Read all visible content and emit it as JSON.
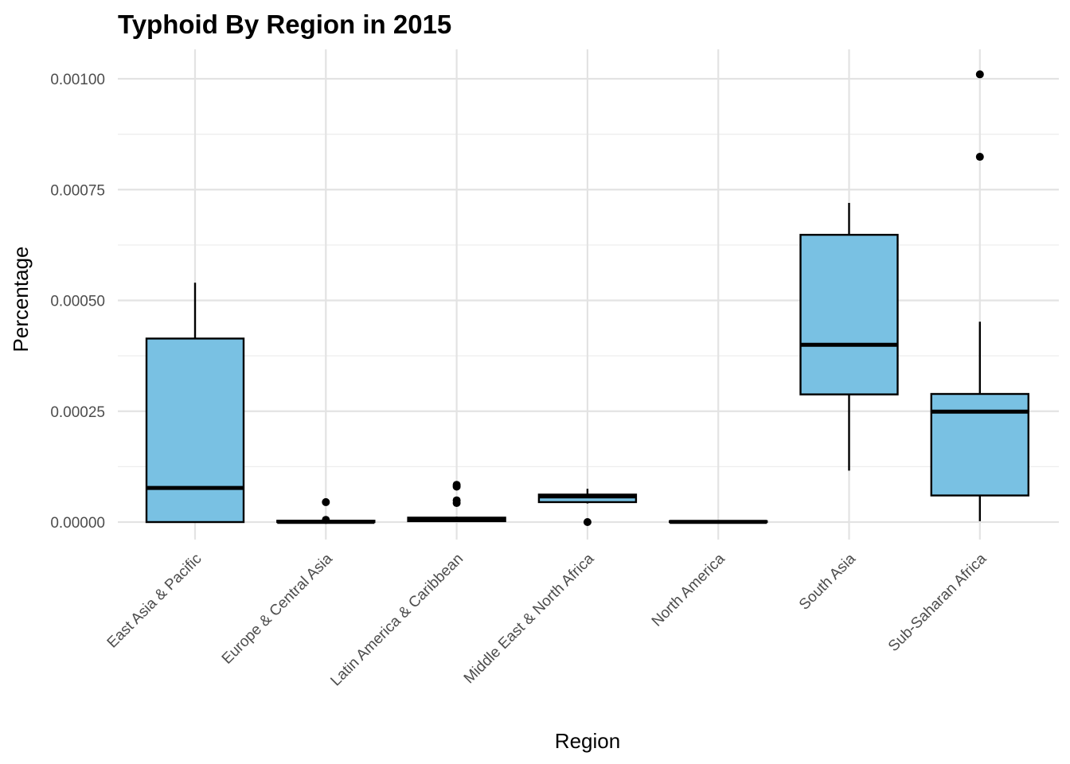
{
  "chart_data": {
    "type": "boxplot",
    "title": "Typhoid By Region in 2015",
    "xlabel": "Region",
    "ylabel": "Percentage",
    "ylim": [
      -6e-05,
      0.00106
    ],
    "yticks": [
      "0.00000",
      "0.00025",
      "0.00050",
      "0.00075",
      "0.00100"
    ],
    "grid": true,
    "fill_color": "#79C1E3",
    "categories": [
      "East Asia & Pacific",
      "Europe & Central Asia",
      "Latin America & Caribbean",
      "Middle East & North Africa",
      "North America",
      "South Asia",
      "Sub-Saharan Africa"
    ],
    "boxes": [
      {
        "category": "East Asia & Pacific",
        "lower_whisker": 0.0,
        "q1": 0.0,
        "median": 7.7e-05,
        "q3": 0.000414,
        "upper_whisker": 0.00054,
        "outliers": []
      },
      {
        "category": "Europe & Central Asia",
        "lower_whisker": 0.0,
        "q1": 0.0,
        "median": 5e-07,
        "q3": 3e-06,
        "upper_whisker": 4e-06,
        "outliers": [
          4.5e-05,
          5e-06
        ]
      },
      {
        "category": "Latin America & Caribbean",
        "lower_whisker": 0.0,
        "q1": 2e-06,
        "median": 6e-06,
        "q3": 1e-05,
        "upper_whisker": 1.2e-05,
        "outliers": [
          8.4e-05,
          8e-05,
          4.9e-05,
          4.3e-05
        ]
      },
      {
        "category": "Middle East & North Africa",
        "lower_whisker": 4.2e-05,
        "q1": 4.5e-05,
        "median": 5.8e-05,
        "q3": 6.2e-05,
        "upper_whisker": 7.5e-05,
        "outliers": [
          0.0
        ]
      },
      {
        "category": "North America",
        "lower_whisker": 0.0,
        "q1": 0.0,
        "median": 5e-07,
        "q3": 2e-06,
        "upper_whisker": 2e-06,
        "outliers": []
      },
      {
        "category": "South Asia",
        "lower_whisker": 0.000116,
        "q1": 0.000288,
        "median": 0.0004,
        "q3": 0.000648,
        "upper_whisker": 0.00072,
        "outliers": []
      },
      {
        "category": "Sub-Saharan Africa",
        "lower_whisker": 2e-06,
        "q1": 6e-05,
        "median": 0.000249,
        "q3": 0.000289,
        "upper_whisker": 0.000452,
        "outliers": [
          0.00101,
          0.000824
        ]
      }
    ]
  }
}
